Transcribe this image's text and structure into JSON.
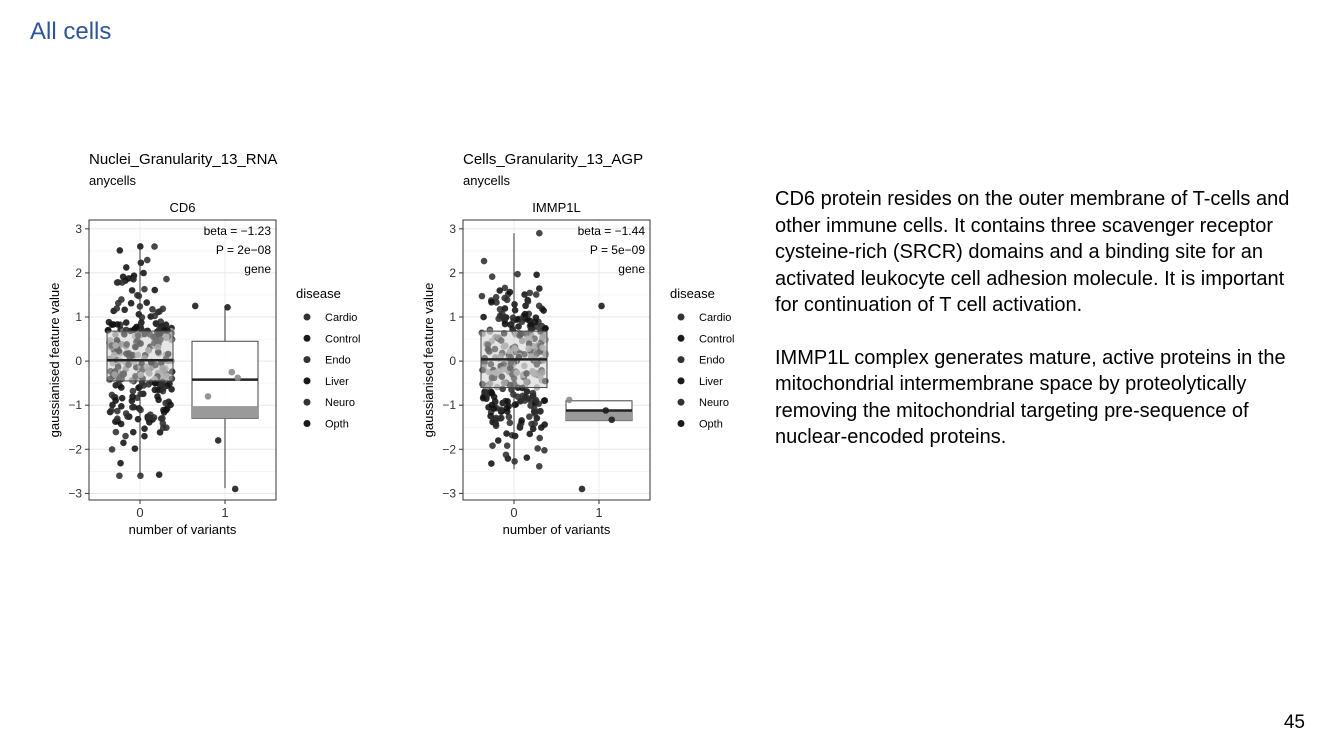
{
  "slide": {
    "title": "All cells",
    "page_number": "45"
  },
  "description": {
    "cd6": "CD6 protein resides on the outer membrane of T-cells and other immune cells. It contains three scavenger receptor cysteine-rich (SRCR) domains and a binding site for an activated leukocyte cell adhesion molecule. It is important for continuation of T cell activation.",
    "immp1l": "IMMP1L complex generates mature, active proteins in the mitochondrial intermembrane space by proteolytically removing the mitochondrial targeting pre-sequence of nuclear-encoded proteins."
  },
  "chart_data": [
    {
      "type": "box+scatter",
      "title": "Nuclei_Granularity_13_RNA",
      "subtitle": "anycells",
      "facet": "CD6",
      "xlabel": "number of variants",
      "ylabel": "gaussianised feature value",
      "categories": [
        "0",
        "1"
      ],
      "yticks": [
        -3,
        -2,
        -1,
        0,
        1,
        2,
        3
      ],
      "ylim": [
        -3.15,
        3.2
      ],
      "annotation": [
        "beta = −1.23",
        "P = 2e−08",
        "gene"
      ],
      "legend": {
        "title": "disease",
        "entries": [
          "Cardio",
          "Control",
          "Endo",
          "Liver",
          "Neuro",
          "Opth"
        ],
        "position": "right"
      },
      "grid": true,
      "boxes": [
        {
          "x": 0,
          "q1": -0.45,
          "median": 0.02,
          "q3": 0.68,
          "whisker_low": -2.6,
          "whisker_high": 2.6
        },
        {
          "x": 1,
          "q1": -1.3,
          "median": -0.42,
          "q3": 0.45,
          "whisker_low": -2.88,
          "whisker_high": 1.25,
          "shaded_range": [
            -1.3,
            -1.02
          ]
        }
      ],
      "group1_points": [
        1.22,
        1.25,
        -0.25,
        -0.38,
        -0.8,
        -1.8,
        -2.9
      ],
      "group0_n": 300,
      "group0_seed": 11
    },
    {
      "type": "box+scatter",
      "title": "Cells_Granularity_13_AGP",
      "subtitle": "anycells",
      "facet": "IMMP1L",
      "xlabel": "number of variants",
      "ylabel": "gaussianised feature value",
      "categories": [
        "0",
        "1"
      ],
      "yticks": [
        -3,
        -2,
        -1,
        0,
        1,
        2,
        3
      ],
      "ylim": [
        -3.15,
        3.2
      ],
      "annotation": [
        "beta = −1.44",
        "P = 5e−09",
        "gene"
      ],
      "legend": {
        "title": "disease",
        "entries": [
          "Cardio",
          "Control",
          "Endo",
          "Liver",
          "Neuro",
          "Opth"
        ],
        "position": "right"
      },
      "grid": true,
      "boxes": [
        {
          "x": 0,
          "q1": -0.6,
          "median": 0.04,
          "q3": 0.68,
          "whisker_low": -2.45,
          "whisker_high": 2.9
        },
        {
          "x": 1,
          "q1": -1.35,
          "median": -1.12,
          "q3": -0.9,
          "whisker_low": -1.35,
          "whisker_high": -0.9,
          "shaded_range": [
            -1.35,
            -1.12
          ]
        }
      ],
      "group1_points": [
        1.25,
        -0.88,
        -1.12,
        -1.33,
        -2.9
      ],
      "group0_n": 300,
      "group0_seed": 29
    }
  ]
}
